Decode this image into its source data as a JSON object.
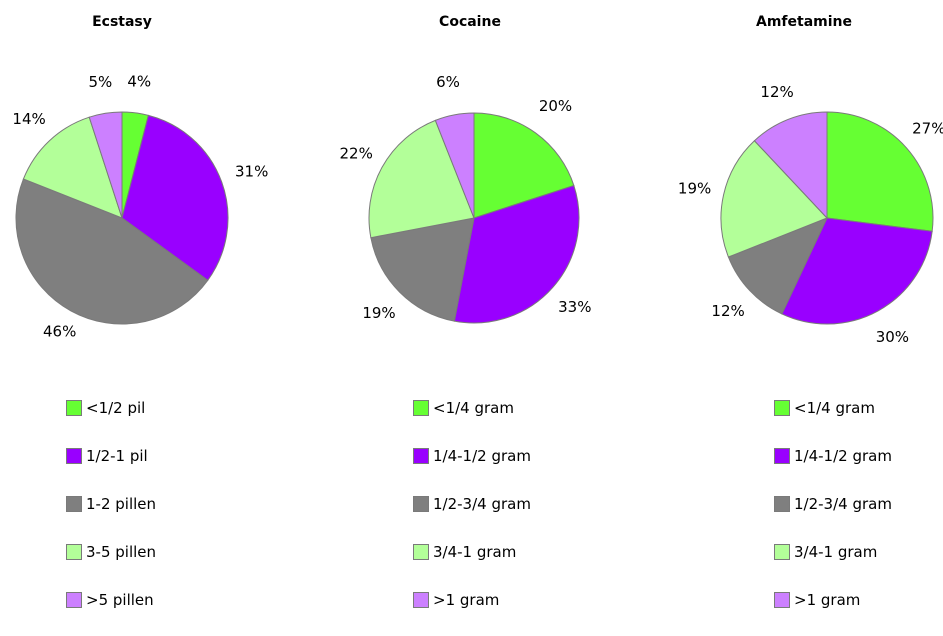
{
  "chart_data": [
    {
      "type": "pie",
      "title": "Ecstasy",
      "categories": [
        "<1/2 pil",
        "1/2-1 pil",
        "1-2 pillen",
        "3-5 pillen",
        ">5 pillen"
      ],
      "values": [
        4,
        31,
        46,
        14,
        5
      ],
      "labels": [
        "4%",
        "31%",
        "46%",
        "14%",
        "5%"
      ],
      "colors": [
        "#66ff33",
        "#9900ff",
        "#7f7f7f",
        "#b3ff99",
        "#cc80ff"
      ]
    },
    {
      "type": "pie",
      "title": "Cocaine",
      "categories": [
        "<1/4 gram",
        "1/4-1/2 gram",
        "1/2-3/4 gram",
        "3/4-1 gram",
        ">1 gram"
      ],
      "values": [
        20,
        33,
        19,
        22,
        6
      ],
      "labels": [
        "20%",
        "33%",
        "19%",
        "22%",
        "6%"
      ],
      "colors": [
        "#66ff33",
        "#9900ff",
        "#7f7f7f",
        "#b3ff99",
        "#cc80ff"
      ]
    },
    {
      "type": "pie",
      "title": "Amfetamine",
      "categories": [
        "<1/4 gram",
        "1/4-1/2 gram",
        "1/2-3/4 gram",
        "3/4-1 gram",
        ">1 gram"
      ],
      "values": [
        27,
        30,
        12,
        19,
        12
      ],
      "labels": [
        "27%",
        "30%",
        "12%",
        "19%",
        "12%"
      ],
      "colors": [
        "#66ff33",
        "#9900ff",
        "#7f7f7f",
        "#b3ff99",
        "#cc80ff"
      ]
    }
  ]
}
